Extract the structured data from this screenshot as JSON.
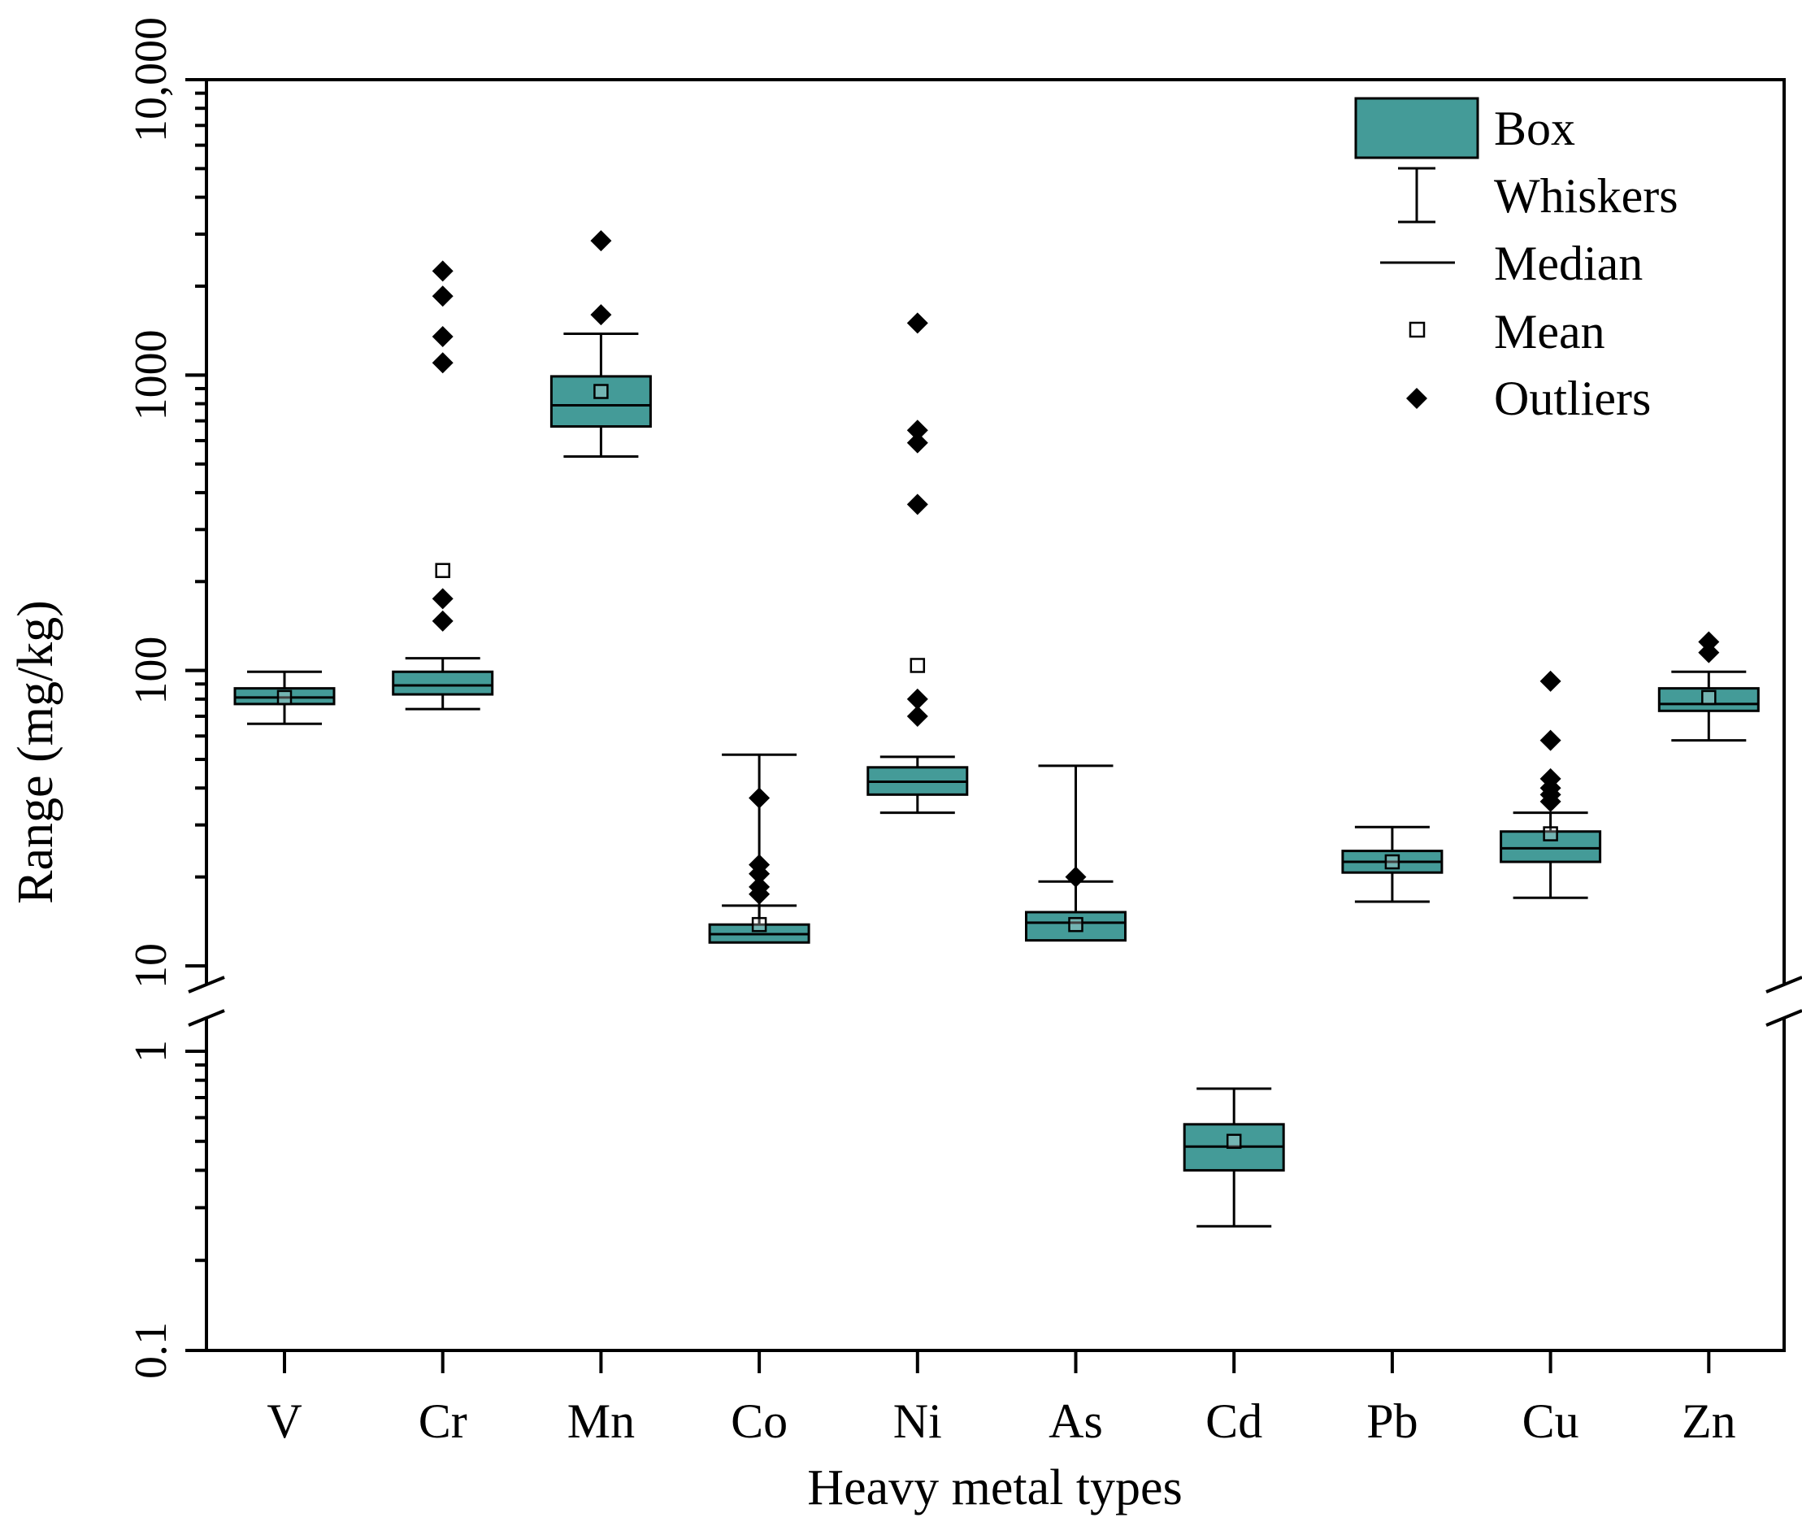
{
  "chart_data": {
    "type": "box",
    "title": "",
    "xlabel": "Heavy metal types",
    "ylabel": "Range (mg/kg)",
    "yscale": "log",
    "axis_break": {
      "lower_max": 1,
      "upper_min": 10
    },
    "ylim": [
      0.1,
      10000
    ],
    "yticks": [
      {
        "value": 0.1,
        "label": "0.1"
      },
      {
        "value": 1,
        "label": "1"
      },
      {
        "value": 10,
        "label": "10"
      },
      {
        "value": 100,
        "label": "100"
      },
      {
        "value": 1000,
        "label": "1000"
      },
      {
        "value": 10000,
        "label": "10,000"
      }
    ],
    "box_color": "#449b98",
    "categories": [
      "V",
      "Cr",
      "Mn",
      "Co",
      "Ni",
      "As",
      "Cd",
      "Pb",
      "Cu",
      "Zn"
    ],
    "boxes": [
      {
        "name": "V",
        "whisker_low": 66,
        "q1": 77,
        "median": 81,
        "q3": 87,
        "whisker_high": 99,
        "mean": 81,
        "outliers": []
      },
      {
        "name": "Cr",
        "whisker_low": 74,
        "q1": 83,
        "median": 89,
        "q3": 99,
        "whisker_high": 110,
        "mean": 218,
        "outliers": [
          147,
          175,
          1100,
          1350,
          1850,
          2250
        ]
      },
      {
        "name": "Mn",
        "whisker_low": 530,
        "q1": 670,
        "median": 790,
        "q3": 990,
        "whisker_high": 1380,
        "mean": 880,
        "outliers": [
          1600,
          2850
        ]
      },
      {
        "name": "Co",
        "whisker_low": 9.8,
        "q1": 12,
        "median": 12.8,
        "q3": 13.8,
        "whisker_high": 16,
        "mean": 13.8,
        "outliers": [
          17.5,
          18.5,
          20.5,
          22,
          37
        ]
      },
      {
        "name": "Ni",
        "whisker_low": 33,
        "q1": 38,
        "median": 42,
        "q3": 47,
        "whisker_high": 51,
        "mean": 104,
        "outliers": [
          70,
          80,
          365,
          590,
          650,
          1500
        ]
      },
      {
        "name": "As",
        "whisker_low": 9,
        "q1": 12.2,
        "median": 14,
        "q3": 15.2,
        "whisker_high": 19.3,
        "mean": 13.8,
        "outliers": [
          20
        ]
      },
      {
        "name": "Cd",
        "whisker_low": 0.26,
        "q1": 0.4,
        "median": 0.48,
        "q3": 0.57,
        "whisker_high": 0.75,
        "mean": 0.5,
        "outliers": []
      },
      {
        "name": "Pb",
        "whisker_low": 16.5,
        "q1": 20.7,
        "median": 22.5,
        "q3": 24.5,
        "whisker_high": 29.5,
        "mean": 22.5,
        "outliers": []
      },
      {
        "name": "Cu",
        "whisker_low": 17,
        "q1": 22.5,
        "median": 25,
        "q3": 28.5,
        "whisker_high": 33,
        "mean": 28,
        "outliers": [
          36,
          38,
          40,
          43,
          58,
          92
        ]
      },
      {
        "name": "Zn",
        "whisker_low": 58,
        "q1": 73,
        "median": 77,
        "q3": 87,
        "whisker_high": 99,
        "mean": 81,
        "outliers": [
          115,
          125
        ]
      }
    ],
    "legend": {
      "position": "top-right",
      "items": [
        {
          "key": "box",
          "label": "Box"
        },
        {
          "key": "whiskers",
          "label": "Whiskers"
        },
        {
          "key": "median",
          "label": "Median"
        },
        {
          "key": "mean",
          "label": "Mean"
        },
        {
          "key": "outliers",
          "label": "Outliers"
        }
      ]
    }
  }
}
